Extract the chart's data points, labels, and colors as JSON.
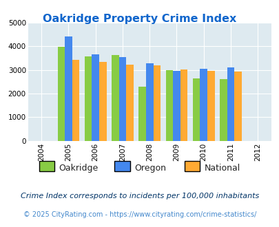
{
  "title": "Oakridge Property Crime Index",
  "years": [
    2005,
    2006,
    2007,
    2008,
    2009,
    2010,
    2011
  ],
  "oakridge": [
    3980,
    3570,
    3640,
    2280,
    3000,
    2650,
    2600
  ],
  "oregon": [
    4420,
    3670,
    3540,
    3270,
    2970,
    3040,
    3110
  ],
  "national": [
    3430,
    3330,
    3220,
    3190,
    3030,
    2950,
    2920
  ],
  "color_oakridge": "#88cc44",
  "color_oregon": "#4488ee",
  "color_national": "#ffaa33",
  "xlim": [
    2003.5,
    2012.5
  ],
  "ylim": [
    0,
    5000
  ],
  "yticks": [
    0,
    1000,
    2000,
    3000,
    4000,
    5000
  ],
  "xticks": [
    2004,
    2005,
    2006,
    2007,
    2008,
    2009,
    2010,
    2011,
    2012
  ],
  "title_color": "#1166cc",
  "bg_color": "#deeaf0",
  "legend_labels": [
    "Oakridge",
    "Oregon",
    "National"
  ],
  "footnote1": "Crime Index corresponds to incidents per 100,000 inhabitants",
  "footnote2": "© 2025 CityRating.com - https://www.cityrating.com/crime-statistics/",
  "bar_width": 0.27,
  "footnote1_color": "#003366",
  "footnote2_color": "#4488cc"
}
